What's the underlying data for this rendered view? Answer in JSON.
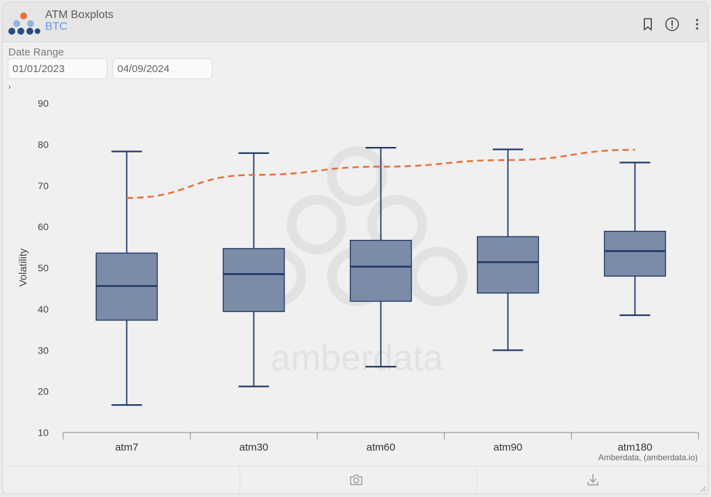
{
  "header": {
    "title": "ATM Boxplots",
    "subtitle": "BTC"
  },
  "icons": {
    "logo": "amberdata-logo-icon",
    "bookmark": "bookmark-icon",
    "info": "info-icon",
    "more": "more-vertical-icon",
    "camera": "camera-icon",
    "download": "download-icon",
    "expander": "chevron-right-icon"
  },
  "filters": {
    "label": "Date Range",
    "start_date": "01/01/2023",
    "end_date": "04/09/2024"
  },
  "expander_glyph": "›",
  "watermark": "amberdata",
  "colors": {
    "box_fill": "#7b8ba8",
    "box_stroke": "#1f3864",
    "median": "#1f3864",
    "term_line": "#e8703a",
    "logo_orange": "#e8703a",
    "logo_blue": "#2a4a7f",
    "logo_light": "#8fb3e0"
  },
  "chart_data": {
    "type": "box",
    "title": "",
    "xlabel": "",
    "ylabel": "Volatility",
    "ylim": [
      10,
      90
    ],
    "yticks": [
      10,
      20,
      30,
      40,
      50,
      60,
      70,
      80,
      90
    ],
    "grid": false,
    "credit": "Amberdata, (amberdata.io)",
    "categories": [
      "atm7",
      "atm30",
      "atm60",
      "atm90",
      "atm180"
    ],
    "boxes": [
      {
        "category": "atm7",
        "min": 16.7,
        "q1": 37.3,
        "median": 45.6,
        "q3": 53.6,
        "max": 78.3
      },
      {
        "category": "atm30",
        "min": 21.2,
        "q1": 39.4,
        "median": 48.5,
        "q3": 54.7,
        "max": 77.9
      },
      {
        "category": "atm60",
        "min": 26.0,
        "q1": 41.9,
        "median": 50.3,
        "q3": 56.7,
        "max": 79.2
      },
      {
        "category": "atm90",
        "min": 30.0,
        "q1": 43.9,
        "median": 51.4,
        "q3": 57.6,
        "max": 78.8
      },
      {
        "category": "atm180",
        "min": 38.5,
        "q1": 48.0,
        "median": 54.1,
        "q3": 58.9,
        "max": 75.6
      }
    ],
    "term_structure": {
      "style": "dashed",
      "values": [
        67.0,
        72.6,
        74.6,
        76.2,
        78.7
      ]
    }
  }
}
